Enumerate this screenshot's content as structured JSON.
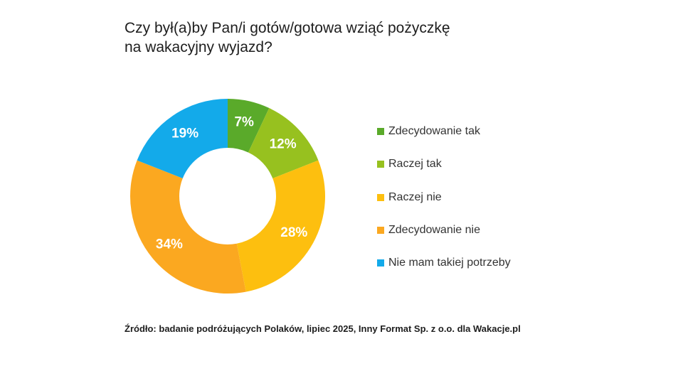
{
  "title": {
    "line1": "Czy był(a)by Pan/i gotów/gotowa wziąć pożyczkę",
    "line2": "na wakacyjny wyjazd?"
  },
  "chart_data": {
    "type": "pie",
    "donut": true,
    "title": "Czy był(a)by Pan/i gotów/gotowa wziąć pożyczkę na wakacyjny wyjazd?",
    "categories": [
      "Zdecydowanie tak",
      "Raczej tak",
      "Raczej nie",
      "Zdecydowanie nie",
      "Nie mam takiej potrzeby"
    ],
    "values": [
      7,
      12,
      28,
      34,
      19
    ],
    "value_labels": [
      "7%",
      "12%",
      "28%",
      "34%",
      "19%"
    ],
    "colors": [
      "#5aaa2a",
      "#97c11f",
      "#fdbf0f",
      "#fba820",
      "#13aaea"
    ],
    "legend_position": "right"
  },
  "legend": {
    "items": [
      {
        "label": "Zdecydowanie tak",
        "color": "#5aaa2a"
      },
      {
        "label": "Raczej tak",
        "color": "#97c11f"
      },
      {
        "label": "Raczej nie",
        "color": "#fdbf0f"
      },
      {
        "label": "Zdecydowanie nie",
        "color": "#fba820"
      },
      {
        "label": "Nie mam takiej potrzeby",
        "color": "#13aaea"
      }
    ]
  },
  "source": {
    "text": "Źródło: badanie podróżujących Polaków, lipiec 2025, Inny Format Sp. z o.o. dla Wakacje.pl"
  }
}
